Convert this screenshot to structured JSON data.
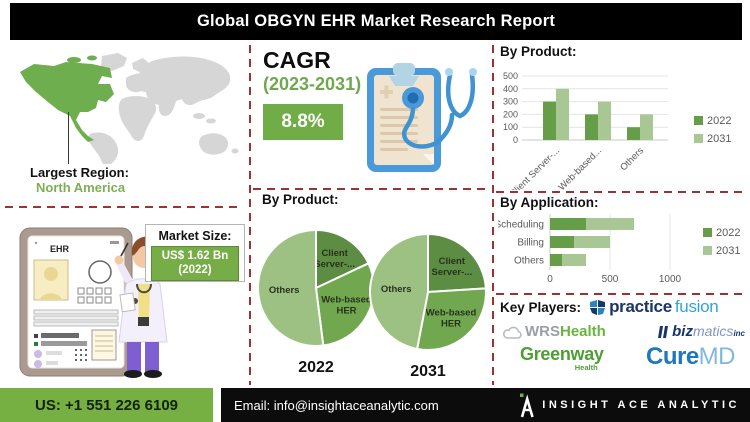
{
  "banner": {
    "title": "Global OBGYN EHR Market Research Report"
  },
  "left": {
    "region_label": "Largest Region:",
    "region_value": "North America",
    "tablet_label": "EHR",
    "market_size": {
      "label": "Market Size:",
      "value": "US$ 1.62 Bn",
      "year": "(2022)"
    }
  },
  "cagr": {
    "label": "CAGR",
    "period": "(2023-2031)",
    "value": "8.8%"
  },
  "chart_data": [
    {
      "type": "bar",
      "title": "By Product:",
      "categories": [
        "Client Server-...",
        "Web-based...",
        "Others"
      ],
      "series": [
        {
          "name": "2022",
          "values": [
            300,
            200,
            100
          ]
        },
        {
          "name": "2031",
          "values": [
            400,
            300,
            200
          ]
        }
      ],
      "ylabel": "",
      "xlabel": "",
      "ylim": [
        0,
        500
      ],
      "yticks": [
        0,
        100,
        200,
        300,
        400,
        500
      ],
      "grid": true,
      "legend_position": "right"
    },
    {
      "type": "pie",
      "title": "By Product:",
      "pies": [
        {
          "label": "2022",
          "slices": [
            {
              "name": "Client Server-...",
              "pct": 18
            },
            {
              "name": "Web-based HER",
              "pct": 30
            },
            {
              "name": "Others",
              "pct": 52
            }
          ]
        },
        {
          "label": "2031",
          "slices": [
            {
              "name": "Client Server-...",
              "pct": 24
            },
            {
              "name": "Web-based HER",
              "pct": 29
            },
            {
              "name": "Others",
              "pct": 47
            }
          ]
        }
      ]
    },
    {
      "type": "bar-horizontal-stacked",
      "title": "By Application:",
      "categories": [
        "Scheduling",
        "Billing",
        "Others"
      ],
      "series": [
        {
          "name": "2022",
          "values": [
            300,
            200,
            100
          ]
        },
        {
          "name": "2031",
          "values": [
            400,
            300,
            200
          ]
        }
      ],
      "xticks": [
        0,
        500,
        1000
      ],
      "xlim": [
        0,
        1400
      ],
      "grid": true,
      "legend_position": "right"
    }
  ],
  "key_players": {
    "label": "Key Players:",
    "practice_fusion": {
      "part1": "practice",
      "part2": "fusion"
    },
    "wrs_health": {
      "part1": "WRS",
      "part2": "Health"
    },
    "bizmatics": {
      "part1": "biz",
      "part2": "matics",
      "part3": "inc"
    },
    "greenway": {
      "part1": "Greenway",
      "part2": "Health"
    },
    "curemd": {
      "part1": "Cure",
      "part2": "MD"
    }
  },
  "footer": {
    "phone": "US: +1 551 226 6109",
    "email": "Email: info@insightaceanalytic.com",
    "brand": "INSIGHT ACE ANALYTIC"
  },
  "colors": {
    "accent_green": "#76b043",
    "series_2022": "#669d49",
    "series_2031": "#a8c794",
    "pie_dark": "#5d8c43",
    "pie_mid": "#71a84f",
    "pie_light": "#9cc183",
    "dashed_border": "#9e3132",
    "map_region": "#6fae4e",
    "map_other": "#d6d6d6",
    "axis_text": "#595959"
  }
}
